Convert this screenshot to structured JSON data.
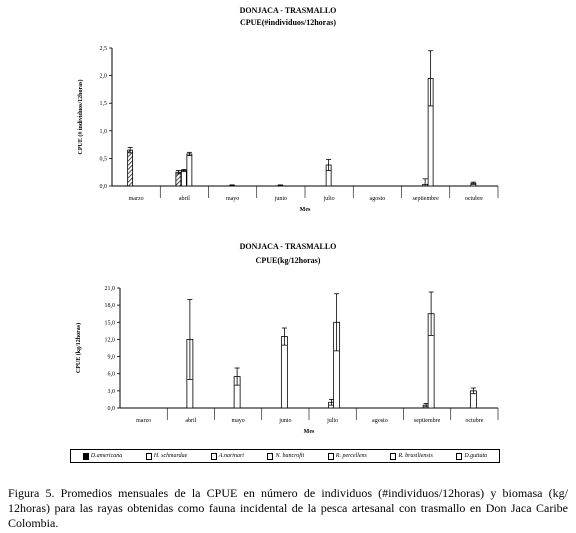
{
  "chart_data": [
    {
      "type": "bar",
      "title": "DONJACA - TRASMALLO",
      "subtitle": "CPUE(#individuos/12horas)",
      "xlabel": "Mes",
      "ylabel": "CPUE (# individuos/12horas)",
      "categories": [
        "marzo",
        "abril",
        "mayo",
        "junio",
        "julio",
        "agosto",
        "septiembre",
        "octubre"
      ],
      "ylim": [
        0,
        2.5
      ],
      "yticks": [
        "0,0",
        "0,5",
        "1,0",
        "1,5",
        "2,0",
        "2,5"
      ],
      "series": [
        {
          "name": "D.americana",
          "values": [
            0.65,
            0.25,
            0.0,
            0.0,
            0.0,
            0.0,
            0.0,
            0.0
          ],
          "errors": [
            0.05,
            0.03,
            0,
            0,
            0,
            0,
            0,
            0
          ]
        },
        {
          "name": "H. schmardae",
          "values": [
            0.0,
            0.28,
            0.01,
            0.01,
            0.38,
            0.0,
            0.03,
            0.05
          ],
          "errors": [
            0,
            0.02,
            0.01,
            0.01,
            0.1,
            0,
            0.1,
            0.02
          ]
        },
        {
          "name": "A.narinari",
          "values": [
            0.0,
            0.58,
            0.0,
            0.0,
            0.0,
            0.0,
            1.95,
            0.0
          ],
          "errors": [
            0,
            0.03,
            0,
            0,
            0,
            0,
            0.5,
            0
          ]
        }
      ]
    },
    {
      "type": "bar",
      "title": "DONJACA - TRASMALLO",
      "subtitle": "CPUE(kg/12horas)",
      "xlabel": "Mes",
      "ylabel": "CPUE (kg/12horas)",
      "categories": [
        "marzo",
        "abril",
        "mayo",
        "junio",
        "julio",
        "agosto",
        "septiembre",
        "octubre"
      ],
      "ylim": [
        0,
        21
      ],
      "yticks": [
        "0,0",
        "3,0",
        "6,0",
        "9,0",
        "12,0",
        "15,0",
        "18,0",
        "21,0"
      ],
      "series": [
        {
          "name": "H. schmardae",
          "values": [
            0.0,
            12.0,
            5.5,
            12.5,
            1.0,
            0.0,
            0.5,
            3.0
          ],
          "errors": [
            0,
            7.0,
            1.5,
            1.5,
            0.5,
            0,
            0.3,
            0.5
          ]
        },
        {
          "name": "A.narinari",
          "values": [
            0.0,
            0.0,
            0.0,
            0.0,
            15.0,
            0.0,
            16.5,
            0.0
          ],
          "errors": [
            0,
            0,
            0,
            0,
            5.0,
            0,
            3.8,
            0
          ]
        }
      ]
    }
  ],
  "legend": [
    {
      "label": "D.americana",
      "swatch": "solid"
    },
    {
      "label": "H. schmardae",
      "swatch": "open"
    },
    {
      "label": "A.narinari",
      "swatch": "open"
    },
    {
      "label": "N. bancrofti",
      "swatch": "open"
    },
    {
      "label": "R. percellens",
      "swatch": "open"
    },
    {
      "label": "R. brasiliensis",
      "swatch": "open"
    },
    {
      "label": "D.guttata",
      "swatch": "open"
    }
  ],
  "caption": "Figura 5. Promedios mensuales de la CPUE en número de individuos (#individuos/12horas) y biomasa (kg/ 12horas) para las rayas obtenidas como fauna incidental de la pesca artesanal con trasmallo en Don Jaca Caribe Colombia."
}
